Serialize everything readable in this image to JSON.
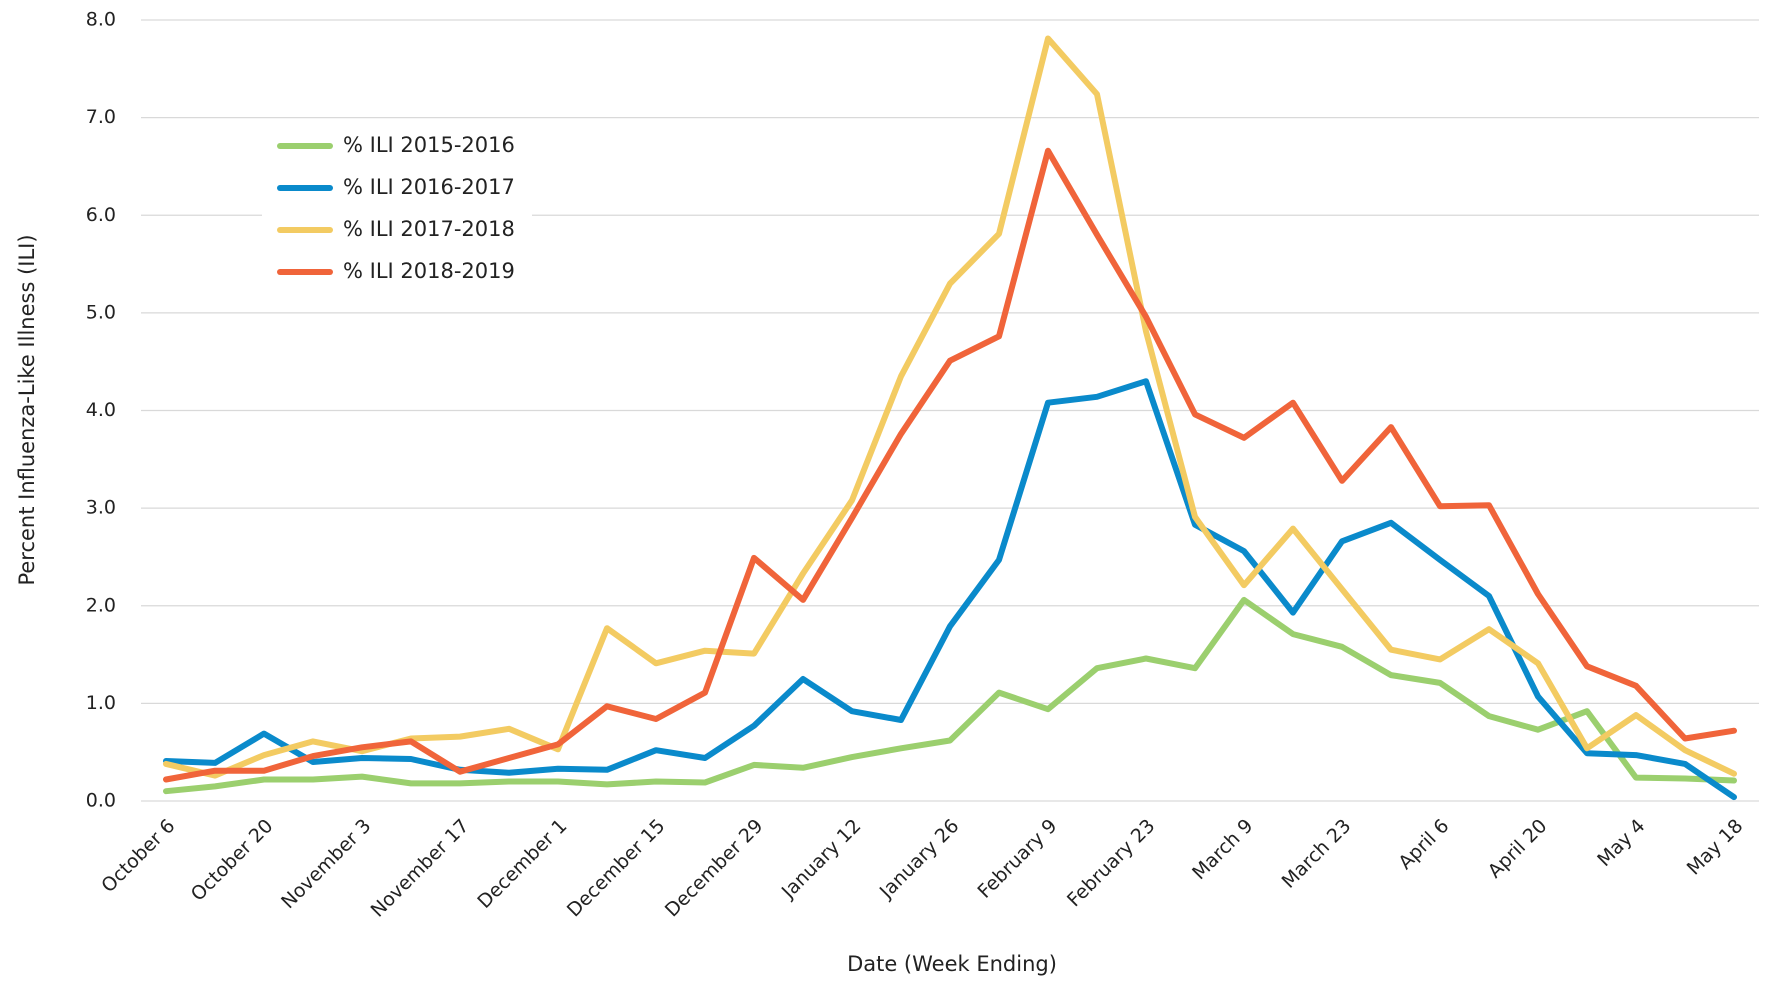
{
  "chart_data": {
    "type": "line",
    "x_label": "Date (Week Ending)",
    "y_label": "Percent Influenza-Like Illness (ILI)",
    "categories": [
      "October 6",
      null,
      "October 20",
      null,
      "November 3",
      null,
      "November 17",
      null,
      "December 1",
      null,
      "December 15",
      null,
      "December 29",
      null,
      "January 12",
      null,
      "January 26",
      null,
      "February 9",
      null,
      "February 23",
      null,
      "March 9",
      null,
      "March 23",
      null,
      "April 6",
      null,
      "April 20",
      null,
      "May 4",
      null,
      "May 18"
    ],
    "series": [
      {
        "name": "% ILI 2015-2016",
        "color": "#9bcf6e",
        "values": [
          0.1,
          0.15,
          0.22,
          0.22,
          0.25,
          0.18,
          0.18,
          0.2,
          0.2,
          0.17,
          0.2,
          0.19,
          0.37,
          0.34,
          0.45,
          0.54,
          0.62,
          1.11,
          0.94,
          1.36,
          1.46,
          1.36,
          2.06,
          1.71,
          1.58,
          1.29,
          1.21,
          0.87,
          0.73,
          0.92,
          0.24,
          0.23,
          0.21
        ]
      },
      {
        "name": "% ILI 2016-2017",
        "color": "#0a8acb",
        "values": [
          0.41,
          0.39,
          0.69,
          0.4,
          0.44,
          0.43,
          0.32,
          0.29,
          0.33,
          0.32,
          0.52,
          0.44,
          0.77,
          1.25,
          0.92,
          0.83,
          1.79,
          2.47,
          4.08,
          4.14,
          4.3,
          2.83,
          2.56,
          1.93,
          2.66,
          2.85,
          2.47,
          2.1,
          1.07,
          0.49,
          0.47,
          0.38,
          0.04
        ]
      },
      {
        "name": "% ILI 2017-2018",
        "color": "#f3cb62",
        "values": [
          0.38,
          0.26,
          0.47,
          0.61,
          0.51,
          0.64,
          0.66,
          0.74,
          0.53,
          1.77,
          1.41,
          1.54,
          1.51,
          2.33,
          3.08,
          4.35,
          5.3,
          5.81,
          7.81,
          7.24,
          4.81,
          2.91,
          2.21,
          2.79,
          2.17,
          1.55,
          1.45,
          1.76,
          1.41,
          0.54,
          0.88,
          0.52,
          0.28
        ]
      },
      {
        "name": "% ILI 2018-2019",
        "color": "#f0643a",
        "values": [
          0.22,
          0.31,
          0.31,
          0.46,
          0.55,
          0.61,
          0.3,
          0.44,
          0.58,
          0.97,
          0.84,
          1.11,
          2.49,
          2.06,
          2.9,
          3.76,
          4.51,
          4.76,
          6.66,
          5.8,
          4.96,
          3.96,
          3.72,
          4.08,
          3.28,
          3.83,
          3.02,
          3.03,
          2.12,
          1.38,
          1.18,
          0.64,
          0.72
        ]
      }
    ],
    "ylim": [
      0,
      8
    ],
    "yticks": [
      {
        "value": 0,
        "label": "0.0"
      },
      {
        "value": 1,
        "label": "1.0"
      },
      {
        "value": 2,
        "label": "2.0"
      },
      {
        "value": 3,
        "label": "3.0"
      },
      {
        "value": 4,
        "label": "4.0"
      },
      {
        "value": 5,
        "label": "5.0"
      },
      {
        "value": 6,
        "label": "6.0"
      },
      {
        "value": 7,
        "label": "7.0"
      },
      {
        "value": 8,
        "label": "8.0"
      }
    ],
    "grid": true
  }
}
